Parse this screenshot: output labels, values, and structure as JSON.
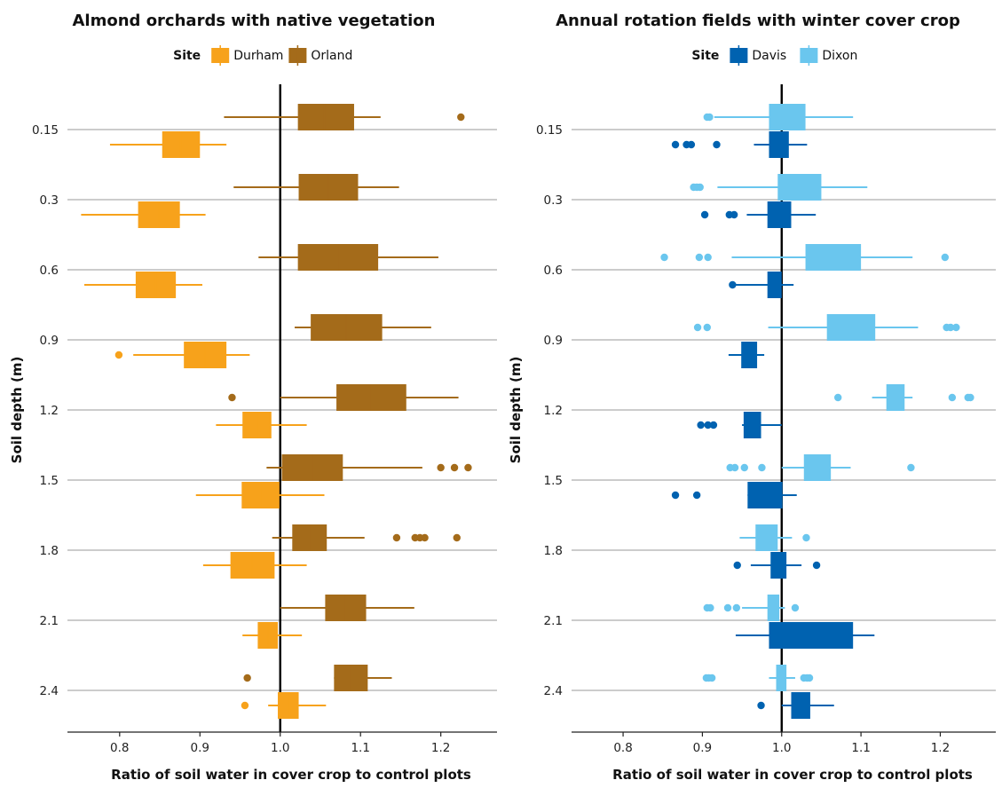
{
  "chart_data": [
    {
      "type": "boxplot",
      "orientation": "horizontal",
      "title": "Almond orchards with native vegetation",
      "xlabel": "Ratio of soil water in cover crop to control plots",
      "ylabel": "Soil depth (m)",
      "xlim": [
        0.735,
        1.27
      ],
      "xticks": [
        "0.8",
        "0.9",
        "1.0",
        "1.1",
        "1.2"
      ],
      "reference_line": 1.0,
      "categories": [
        "0.15",
        "0.3",
        "0.6",
        "0.9",
        "1.2",
        "1.5",
        "1.8",
        "2.1",
        "2.4"
      ],
      "legend": {
        "title": "Site",
        "position": "top-center"
      },
      "series": [
        {
          "name": "Orland",
          "color": "#A46B1A",
          "boxes": [
            {
              "depth": "0.15",
              "whisker_low": 0.93,
              "q1": 1.022,
              "median": 1.055,
              "q3": 1.092,
              "whisker_high": 1.125,
              "outliers": [
                1.225
              ]
            },
            {
              "depth": "0.3",
              "whisker_low": 0.942,
              "q1": 1.023,
              "median": 1.06,
              "q3": 1.097,
              "whisker_high": 1.148,
              "outliers": []
            },
            {
              "depth": "0.6",
              "whisker_low": 0.973,
              "q1": 1.022,
              "median": 1.072,
              "q3": 1.122,
              "whisker_high": 1.197,
              "outliers": []
            },
            {
              "depth": "0.9",
              "whisker_low": 1.018,
              "q1": 1.038,
              "median": 1.082,
              "q3": 1.127,
              "whisker_high": 1.188,
              "outliers": []
            },
            {
              "depth": "1.2",
              "whisker_low": 1.0,
              "q1": 1.07,
              "median": 1.112,
              "q3": 1.157,
              "whisker_high": 1.222,
              "outliers": [
                0.94
              ]
            },
            {
              "depth": "1.5",
              "whisker_low": 0.983,
              "q1": 1.002,
              "median": 1.04,
              "q3": 1.078,
              "whisker_high": 1.177,
              "outliers": [
                1.2,
                1.217,
                1.234
              ]
            },
            {
              "depth": "1.8",
              "whisker_low": 0.99,
              "q1": 1.015,
              "median": 1.037,
              "q3": 1.058,
              "whisker_high": 1.105,
              "outliers": [
                1.145,
                1.168,
                1.174,
                1.18,
                1.22
              ]
            },
            {
              "depth": "2.1",
              "whisker_low": 1.0,
              "q1": 1.056,
              "median": 1.08,
              "q3": 1.107,
              "whisker_high": 1.167,
              "outliers": []
            },
            {
              "depth": "2.4",
              "whisker_low": 1.067,
              "q1": 1.067,
              "median": 1.088,
              "q3": 1.109,
              "whisker_high": 1.139,
              "outliers": [
                0.959
              ]
            }
          ]
        },
        {
          "name": "Durham",
          "color": "#F7A21B",
          "boxes": [
            {
              "depth": "0.15",
              "whisker_low": 0.788,
              "q1": 0.853,
              "median": 0.876,
              "q3": 0.9,
              "whisker_high": 0.933,
              "outliers": []
            },
            {
              "depth": "0.3",
              "whisker_low": 0.752,
              "q1": 0.823,
              "median": 0.849,
              "q3": 0.875,
              "whisker_high": 0.907,
              "outliers": []
            },
            {
              "depth": "0.6",
              "whisker_low": 0.756,
              "q1": 0.82,
              "median": 0.845,
              "q3": 0.87,
              "whisker_high": 0.903,
              "outliers": []
            },
            {
              "depth": "0.9",
              "whisker_low": 0.817,
              "q1": 0.88,
              "median": 0.906,
              "q3": 0.933,
              "whisker_high": 0.962,
              "outliers": [
                0.799
              ]
            },
            {
              "depth": "1.2",
              "whisker_low": 0.92,
              "q1": 0.953,
              "median": 0.971,
              "q3": 0.989,
              "whisker_high": 1.033,
              "outliers": []
            },
            {
              "depth": "1.5",
              "whisker_low": 0.895,
              "q1": 0.952,
              "median": 0.976,
              "q3": 0.999,
              "whisker_high": 1.055,
              "outliers": []
            },
            {
              "depth": "1.8",
              "whisker_low": 0.904,
              "q1": 0.938,
              "median": 0.965,
              "q3": 0.993,
              "whisker_high": 1.033,
              "outliers": []
            },
            {
              "depth": "2.1",
              "whisker_low": 0.953,
              "q1": 0.972,
              "median": 0.985,
              "q3": 0.997,
              "whisker_high": 1.027,
              "outliers": []
            },
            {
              "depth": "2.4",
              "whisker_low": 0.985,
              "q1": 0.997,
              "median": 1.01,
              "q3": 1.023,
              "whisker_high": 1.057,
              "outliers": [
                0.956
              ]
            }
          ]
        }
      ]
    },
    {
      "type": "boxplot",
      "orientation": "horizontal",
      "title": "Annual rotation fields with winter cover crop",
      "xlabel": "Ratio of soil water in cover crop to control plots",
      "ylabel": "Soil depth (m)",
      "xlim": [
        0.735,
        1.27
      ],
      "xticks": [
        "0.8",
        "0.9",
        "1.0",
        "1.1",
        "1.2"
      ],
      "reference_line": 1.0,
      "categories": [
        "0.15",
        "0.3",
        "0.6",
        "0.9",
        "1.2",
        "1.5",
        "1.8",
        "2.1",
        "2.4"
      ],
      "legend": {
        "title": "Site",
        "position": "top-center"
      },
      "series": [
        {
          "name": "Dixon",
          "color": "#6AC6EE",
          "boxes": [
            {
              "depth": "0.15",
              "whisker_low": 0.915,
              "q1": 0.984,
              "median": 1.007,
              "q3": 1.03,
              "whisker_high": 1.09,
              "outliers": [
                0.906,
                0.909
              ]
            },
            {
              "depth": "0.3",
              "whisker_low": 0.919,
              "q1": 0.995,
              "median": 1.022,
              "q3": 1.05,
              "whisker_high": 1.108,
              "outliers": [
                0.889,
                0.893,
                0.897
              ]
            },
            {
              "depth": "0.6",
              "whisker_low": 0.937,
              "q1": 1.03,
              "median": 1.065,
              "q3": 1.1,
              "whisker_high": 1.165,
              "outliers": [
                0.852,
                0.896,
                0.907,
                1.206
              ]
            },
            {
              "depth": "0.9",
              "whisker_low": 0.983,
              "q1": 1.057,
              "median": 1.088,
              "q3": 1.118,
              "whisker_high": 1.172,
              "outliers": [
                0.894,
                0.906,
                1.208,
                1.213,
                1.22
              ]
            },
            {
              "depth": "1.2",
              "whisker_low": 1.114,
              "q1": 1.132,
              "median": 1.144,
              "q3": 1.155,
              "whisker_high": 1.165,
              "outliers": [
                1.071,
                1.215,
                1.235,
                1.238
              ]
            },
            {
              "depth": "1.5",
              "whisker_low": 1.0,
              "q1": 1.028,
              "median": 1.045,
              "q3": 1.062,
              "whisker_high": 1.087,
              "outliers": [
                0.935,
                0.941,
                0.953,
                0.975,
                1.163
              ]
            },
            {
              "depth": "1.8",
              "whisker_low": 0.947,
              "q1": 0.967,
              "median": 0.981,
              "q3": 0.995,
              "whisker_high": 1.013,
              "outliers": [
                1.031
              ]
            },
            {
              "depth": "2.1",
              "whisker_low": 0.95,
              "q1": 0.982,
              "median": 0.99,
              "q3": 0.997,
              "whisker_high": 1.004,
              "outliers": [
                0.906,
                0.91,
                0.932,
                0.943,
                1.017
              ]
            },
            {
              "depth": "2.4",
              "whisker_low": 0.984,
              "q1": 0.993,
              "median": 0.999,
              "q3": 1.006,
              "whisker_high": 1.017,
              "outliers": [
                0.905,
                0.908,
                0.912,
                1.028,
                1.032,
                1.035
              ]
            }
          ]
        },
        {
          "name": "Davis",
          "color": "#0062B0",
          "boxes": [
            {
              "depth": "0.15",
              "whisker_low": 0.965,
              "q1": 0.984,
              "median": 0.996,
              "q3": 1.009,
              "whisker_high": 1.032,
              "outliers": [
                0.866,
                0.88,
                0.886,
                0.918
              ]
            },
            {
              "depth": "0.3",
              "whisker_low": 0.956,
              "q1": 0.982,
              "median": 0.997,
              "q3": 1.012,
              "whisker_high": 1.043,
              "outliers": [
                0.903,
                0.934,
                0.94
              ]
            },
            {
              "depth": "0.6",
              "whisker_low": 0.941,
              "q1": 0.982,
              "median": 0.991,
              "q3": 1.0,
              "whisker_high": 1.015,
              "outliers": [
                0.938
              ]
            },
            {
              "depth": "0.9",
              "whisker_low": 0.933,
              "q1": 0.949,
              "median": 0.959,
              "q3": 0.969,
              "whisker_high": 0.978,
              "outliers": []
            },
            {
              "depth": "1.2",
              "whisker_low": 0.95,
              "q1": 0.952,
              "median": 0.963,
              "q3": 0.974,
              "whisker_high": 1.0,
              "outliers": [
                0.898,
                0.907,
                0.914
              ]
            },
            {
              "depth": "1.5",
              "whisker_low": 0.957,
              "q1": 0.957,
              "median": 0.979,
              "q3": 1.001,
              "whisker_high": 1.019,
              "outliers": [
                0.866,
                0.893
              ]
            },
            {
              "depth": "1.8",
              "whisker_low": 0.961,
              "q1": 0.986,
              "median": 0.996,
              "q3": 1.006,
              "whisker_high": 1.025,
              "outliers": [
                0.944,
                1.044
              ]
            },
            {
              "depth": "2.1",
              "whisker_low": 0.942,
              "q1": 0.984,
              "median": 1.037,
              "q3": 1.09,
              "whisker_high": 1.117,
              "outliers": []
            },
            {
              "depth": "2.4",
              "whisker_low": 1.0,
              "q1": 1.012,
              "median": 1.024,
              "q3": 1.036,
              "whisker_high": 1.066,
              "outliers": [
                0.974
              ]
            }
          ]
        }
      ]
    }
  ]
}
